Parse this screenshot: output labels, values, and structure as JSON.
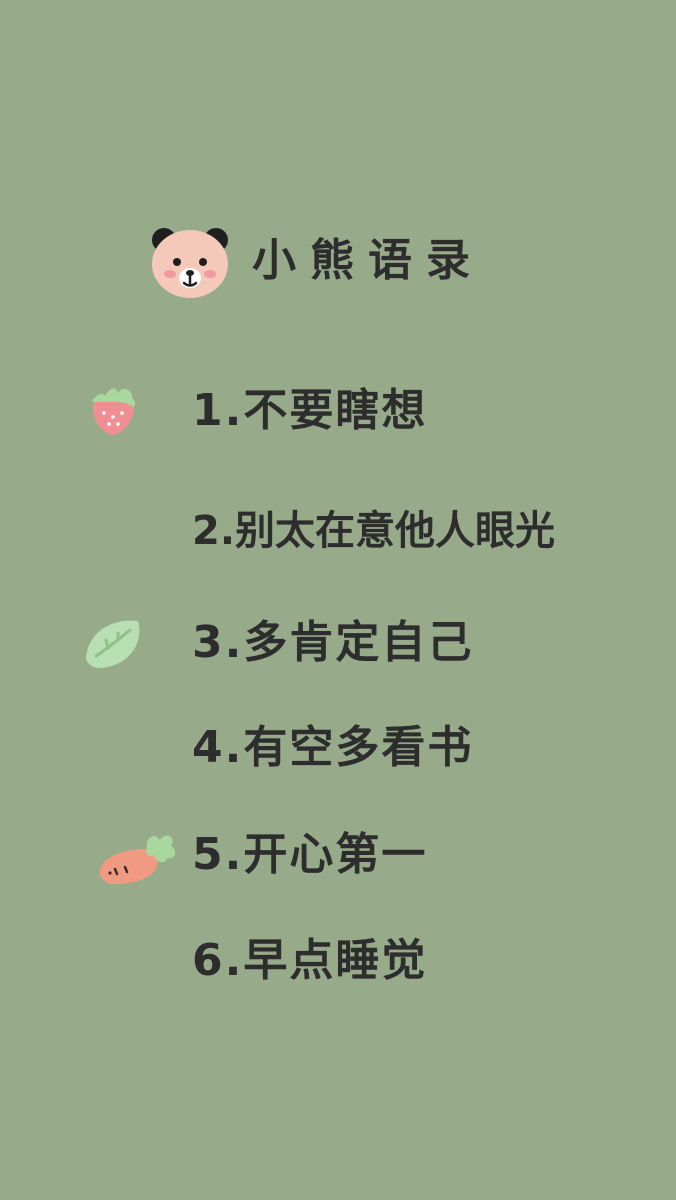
{
  "background_color": "#97ab8b",
  "title": "小熊语录",
  "items": [
    {
      "text": "1.不要瞎想"
    },
    {
      "text": "2.别太在意他人眼光"
    },
    {
      "text": "3.多肯定自己"
    },
    {
      "text": "4.有空多看书"
    },
    {
      "text": "5.开心第一"
    },
    {
      "text": "6.早点睡觉"
    }
  ],
  "decorations": {
    "bear": "bear-face-icon",
    "strawberry": "strawberry-icon",
    "leaf": "leaf-icon",
    "carrot": "carrot-icon"
  },
  "colors": {
    "text": "#2d2d2d",
    "bear_face": "#f4c9b9",
    "bear_ear": "#1f1f1f",
    "blush": "#f19aa2",
    "strawberry": "#ef8f94",
    "leaf": "#b8dfb1",
    "carrot": "#f09a82",
    "stem": "#a9d89e"
  }
}
